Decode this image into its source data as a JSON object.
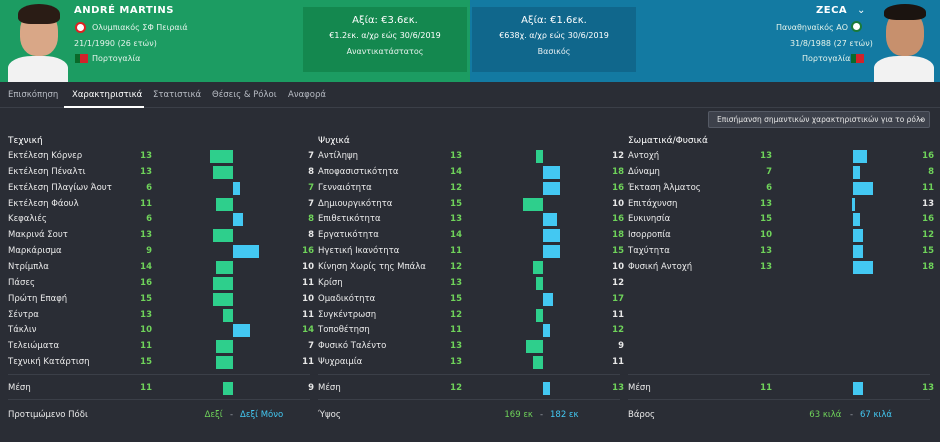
{
  "player_a": {
    "name": "ANDRÉ MARTINS",
    "club": "Ολυμπιακός ΣΦ Πειραιά",
    "dob": "21/1/1990 (26 ετών)",
    "nationality": "Πορτογαλία",
    "value": "Αξία: €3.6εκ.",
    "contract": "€1.2εκ. α/χρ εώς 30/6/2019",
    "status": "Αναντικατάστατος",
    "color": "#1c9c62"
  },
  "player_b": {
    "name": "ZECA",
    "club": "Παναθηναϊκός ΑΟ",
    "dob": "31/8/1988 (27 ετών)",
    "nationality": "Πορτογαλία",
    "value": "Αξία: €1.6εκ.",
    "contract": "€638χ. α/χρ εώς 30/6/2019",
    "status": "Βασικός",
    "color": "#137aa2"
  },
  "tabs": [
    "Επισκόπηση",
    "Χαρακτηριστικά",
    "Στατιστικά",
    "Θέσεις & Ρόλοι",
    "Αναφορά"
  ],
  "active_tab": "Χαρακτηριστικά",
  "filter_label": "Επισήμανση σημαντικών χαρακτηριστικών για το ρόλο",
  "columns": [
    {
      "title": "Τεχνική",
      "rows": [
        {
          "label": "Εκτέλεση Κόρνερ",
          "a": 13,
          "b": 7
        },
        {
          "label": "Εκτέλεση Πέναλτι",
          "a": 13,
          "b": 8
        },
        {
          "label": "Εκτέλεση Πλαγίων Άουτ",
          "a": 6,
          "b": 7
        },
        {
          "label": "Εκτέλεση Φάουλ",
          "a": 11,
          "b": 7
        },
        {
          "label": "Κεφαλιές",
          "a": 6,
          "b": 8
        },
        {
          "label": "Μακρινά Σουτ",
          "a": 13,
          "b": 8
        },
        {
          "label": "Μαρκάρισμα",
          "a": 9,
          "b": 16
        },
        {
          "label": "Ντρίμπλα",
          "a": 14,
          "b": 10
        },
        {
          "label": "Πάσες",
          "a": 16,
          "b": 11
        },
        {
          "label": "Πρώτη Επαφή",
          "a": 15,
          "b": 10
        },
        {
          "label": "Σέντρα",
          "a": 13,
          "b": 11
        },
        {
          "label": "Τάκλιν",
          "a": 10,
          "b": 14
        },
        {
          "label": "Τελειώματα",
          "a": 11,
          "b": 7
        },
        {
          "label": "Τεχνική Κατάρτιση",
          "a": 15,
          "b": 11
        }
      ],
      "avg": {
        "label": "Μέση",
        "a": 11,
        "b": 9
      },
      "footer": {
        "label": "Προτιμώμενο Πόδι",
        "a": "Δεξί",
        "sep": "-",
        "b": "Δεξί Μόνο"
      }
    },
    {
      "title": "Ψυχικά",
      "rows": [
        {
          "label": "Αντίληψη",
          "a": 13,
          "b": 12
        },
        {
          "label": "Αποφασιστικότητα",
          "a": 14,
          "b": 18
        },
        {
          "label": "Γενναιότητα",
          "a": 12,
          "b": 16
        },
        {
          "label": "Δημιουργικότητα",
          "a": 15,
          "b": 10
        },
        {
          "label": "Επιθετικότητα",
          "a": 13,
          "b": 16
        },
        {
          "label": "Εργατικότητα",
          "a": 14,
          "b": 18
        },
        {
          "label": "Ηγετική Ικανότητα",
          "a": 11,
          "b": 15
        },
        {
          "label": "Κίνηση Χωρίς της Μπάλα",
          "a": 12,
          "b": 10
        },
        {
          "label": "Κρίση",
          "a": 13,
          "b": 12
        },
        {
          "label": "Ομαδικότητα",
          "a": 15,
          "b": 17
        },
        {
          "label": "Συγκέντρωση",
          "a": 12,
          "b": 11
        },
        {
          "label": "Τοποθέτηση",
          "a": 11,
          "b": 12
        },
        {
          "label": "Φυσικό Ταλέντο",
          "a": 13,
          "b": 9
        },
        {
          "label": "Ψυχραιμία",
          "a": 13,
          "b": 11
        }
      ],
      "avg": {
        "label": "Μέση",
        "a": 12,
        "b": 13
      },
      "footer": {
        "label": "Ύψος",
        "a": "169 εκ",
        "sep": "-",
        "b": "182 εκ"
      }
    },
    {
      "title": "Σωματικά/Φυσικά",
      "rows": [
        {
          "label": "Αντοχή",
          "a": 13,
          "b": 16
        },
        {
          "label": "Δύναμη",
          "a": 7,
          "b": 8
        },
        {
          "label": "Έκταση Άλματος",
          "a": 6,
          "b": 11
        },
        {
          "label": "Επιτάχυνση",
          "a": 13,
          "b": 13
        },
        {
          "label": "Ευκινησία",
          "a": 15,
          "b": 16
        },
        {
          "label": "Ισορροπία",
          "a": 10,
          "b": 12
        },
        {
          "label": "Ταχύτητα",
          "a": 13,
          "b": 15
        },
        {
          "label": "Φυσική Αντοχή",
          "a": 13,
          "b": 18
        }
      ],
      "avg": {
        "label": "Μέση",
        "a": 11,
        "b": 13
      },
      "footer": {
        "label": "Βάρος",
        "a": "63 κιλά",
        "sep": "-",
        "b": "67 κιλά"
      }
    }
  ],
  "colors": {
    "bar_a": "#2ecf8c",
    "bar_b": "#43c8f2",
    "value_high": "#6fd35a",
    "background": "#2a2d35"
  }
}
